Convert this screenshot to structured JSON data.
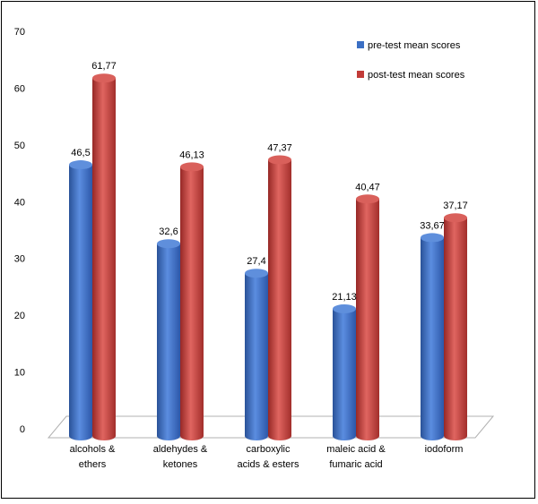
{
  "chart_data": {
    "type": "bar",
    "categories": [
      [
        "alcohols &",
        "ethers"
      ],
      [
        "aldehydes &",
        "ketones"
      ],
      [
        "carboxylic",
        "acids & esters"
      ],
      [
        "maleic acid &",
        "fumaric acid"
      ],
      [
        "iodoform"
      ]
    ],
    "series": [
      {
        "name": "pre-test mean scores",
        "values": [
          46.5,
          32.6,
          27.4,
          21.13,
          33.67
        ],
        "labels": [
          "46,5",
          "32,6",
          "27,4",
          "21,13",
          "33,67"
        ],
        "color": "#3b6fc4"
      },
      {
        "name": "post-test mean scores",
        "values": [
          61.77,
          46.13,
          47.37,
          40.47,
          37.17
        ],
        "labels": [
          "61,77",
          "46,13",
          "47,37",
          "40,47",
          "37,17"
        ],
        "color": "#c23b38"
      }
    ],
    "ylim": [
      0,
      70
    ],
    "yticks": [
      0,
      10,
      20,
      30,
      40,
      50,
      60,
      70
    ],
    "grid": false,
    "legend": "top-right",
    "title": "",
    "xlabel": "",
    "ylabel": ""
  }
}
